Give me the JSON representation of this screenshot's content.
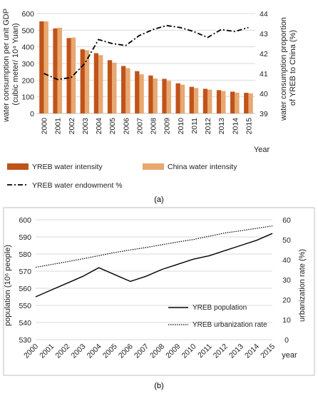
{
  "chart_data": [
    {
      "type": "bar",
      "panel_label": "(a)",
      "categories": [
        "2000",
        "2001",
        "2002",
        "2003",
        "2004",
        "2005",
        "2006",
        "2007",
        "2008",
        "2009",
        "2010",
        "2011",
        "2012",
        "2013",
        "2014",
        "2015"
      ],
      "series": [
        {
          "name": "YREB water intensity",
          "axis": "left",
          "kind": "bar",
          "color": "#c0531a",
          "values": [
            553,
            511,
            453,
            385,
            362,
            320,
            285,
            254,
            228,
            208,
            181,
            160,
            148,
            140,
            131,
            124
          ]
        },
        {
          "name": "China water intensity",
          "axis": "left",
          "kind": "bar",
          "color": "#e8a870",
          "values": [
            553,
            515,
            456,
            380,
            350,
            305,
            272,
            235,
            210,
            196,
            173,
            153,
            143,
            135,
            125,
            121
          ]
        },
        {
          "name": "YREB water endowment %",
          "axis": "right",
          "kind": "line",
          "style": "dash-dot",
          "color": "#000000",
          "values": [
            41.0,
            40.7,
            40.8,
            41.5,
            42.7,
            42.5,
            42.4,
            42.9,
            43.2,
            43.4,
            43.3,
            43.1,
            42.8,
            43.2,
            43.1,
            43.3
          ]
        }
      ],
      "xlabel": "Year",
      "ylabel_left": "water consumption per unit GDP\n(cubic meter/ 10⁴ Yuan)",
      "ylabel_right": "water consumption proportion\nof YREB to China (%)",
      "ylim_left": [
        0,
        600
      ],
      "yticks_left": [
        "0",
        "100",
        "200",
        "300",
        "400",
        "500",
        "600"
      ],
      "ylim_right": [
        39,
        44
      ],
      "yticks_right": [
        "39",
        "40",
        "41",
        "42",
        "43",
        "44"
      ],
      "legend_position": "bottom"
    },
    {
      "type": "line",
      "panel_label": "(b)",
      "categories": [
        "2000",
        "2001",
        "2002",
        "2003",
        "2004",
        "2005",
        "2006",
        "2007",
        "2008",
        "2009",
        "2010",
        "2011",
        "2012",
        "2013",
        "2014",
        "2015"
      ],
      "series": [
        {
          "name": "YREB population",
          "axis": "left",
          "style": "solid",
          "color": "#000000",
          "values": [
            555,
            559,
            563,
            567,
            572,
            568,
            564,
            567,
            571,
            574,
            577,
            579,
            582,
            585,
            588,
            592
          ]
        },
        {
          "name": "YREB urbanization rate",
          "axis": "right",
          "style": "dotted",
          "color": "#000000",
          "values": [
            36.2,
            37.6,
            39.0,
            40.5,
            42.0,
            43.6,
            44.9,
            46.1,
            47.5,
            48.9,
            50.1,
            51.8,
            53.4,
            54.5,
            55.7,
            56.9
          ]
        }
      ],
      "xlabel": "year",
      "ylabel_left": "population (10⁶ people)",
      "ylabel_right": "urbanization rate (%)",
      "ylim_left": [
        530,
        600
      ],
      "yticks_left": [
        "530",
        "540",
        "550",
        "560",
        "570",
        "580",
        "590",
        "600"
      ],
      "ylim_right": [
        0,
        60
      ],
      "yticks_right": [
        "0",
        "10",
        "20",
        "30",
        "40",
        "50",
        "60"
      ],
      "legend_position": "right"
    }
  ]
}
